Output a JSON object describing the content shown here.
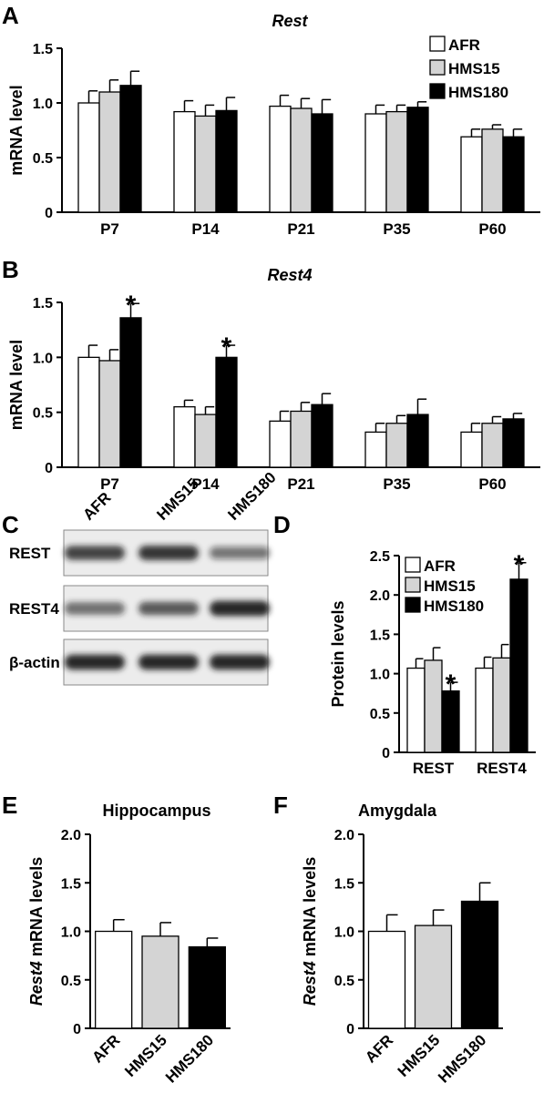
{
  "colors": {
    "AFR": "#ffffff",
    "HMS15": "#d4d4d4",
    "HMS180": "#000000"
  },
  "chart_data": [
    {
      "panel": "A",
      "type": "bar",
      "title": "Rest",
      "xlabel": "",
      "ylabel": "mRNA  level",
      "ylim": [
        0,
        1.5
      ],
      "yticks": [
        "0",
        "0.5",
        "1.0",
        "1.5"
      ],
      "categories": [
        "P7",
        "P14",
        "P21",
        "P35",
        "P60"
      ],
      "legend": [
        "AFR",
        "HMS15",
        "HMS180"
      ],
      "legend_position": "top-right",
      "series": [
        {
          "name": "AFR",
          "values": [
            1.0,
            0.92,
            0.97,
            0.9,
            0.69
          ],
          "errors": [
            0.11,
            0.1,
            0.1,
            0.08,
            0.07
          ]
        },
        {
          "name": "HMS15",
          "values": [
            1.1,
            0.88,
            0.95,
            0.92,
            0.76
          ],
          "errors": [
            0.11,
            0.1,
            0.09,
            0.06,
            0.04
          ]
        },
        {
          "name": "HMS180",
          "values": [
            1.16,
            0.93,
            0.9,
            0.96,
            0.69
          ],
          "errors": [
            0.13,
            0.12,
            0.13,
            0.05,
            0.07
          ]
        }
      ],
      "annotations": []
    },
    {
      "panel": "B",
      "type": "bar",
      "title": "Rest4",
      "xlabel": "",
      "ylabel": "mRNA  level",
      "ylim": [
        0,
        1.5
      ],
      "yticks": [
        "0",
        "0.5",
        "1.0",
        "1.5"
      ],
      "categories": [
        "P7",
        "P14",
        "P21",
        "P35",
        "P60"
      ],
      "series": [
        {
          "name": "AFR",
          "values": [
            1.0,
            0.55,
            0.42,
            0.32,
            0.32
          ],
          "errors": [
            0.11,
            0.06,
            0.09,
            0.08,
            0.08
          ]
        },
        {
          "name": "HMS15",
          "values": [
            0.97,
            0.48,
            0.51,
            0.4,
            0.4
          ],
          "errors": [
            0.1,
            0.07,
            0.08,
            0.07,
            0.06
          ]
        },
        {
          "name": "HMS180",
          "values": [
            1.36,
            1.0,
            0.57,
            0.48,
            0.44
          ],
          "errors": [
            0.13,
            0.11,
            0.1,
            0.14,
            0.05
          ]
        }
      ],
      "annotations": [
        {
          "category": "P7",
          "series": "HMS180",
          "text": "*"
        },
        {
          "category": "P14",
          "series": "HMS180",
          "text": "*"
        }
      ]
    },
    {
      "panel": "D",
      "type": "bar",
      "title": "",
      "xlabel": "",
      "ylabel": "Protein  levels",
      "ylim": [
        0,
        2.5
      ],
      "yticks": [
        "0",
        "0.5",
        "1.0",
        "1.5",
        "2.0",
        "2.5"
      ],
      "categories": [
        "REST",
        "REST4"
      ],
      "legend": [
        "AFR",
        "HMS15",
        "HMS180"
      ],
      "legend_position": "top-left",
      "series": [
        {
          "name": "AFR",
          "values": [
            1.07,
            1.07
          ],
          "errors": [
            0.12,
            0.14
          ]
        },
        {
          "name": "HMS15",
          "values": [
            1.17,
            1.2
          ],
          "errors": [
            0.16,
            0.17
          ]
        },
        {
          "name": "HMS180",
          "values": [
            0.78,
            2.2
          ],
          "errors": [
            0.11,
            0.21
          ]
        }
      ],
      "annotations": [
        {
          "category": "REST",
          "series": "HMS180",
          "text": "*"
        },
        {
          "category": "REST4",
          "series": "HMS180",
          "text": "*"
        }
      ]
    },
    {
      "panel": "E",
      "type": "bar",
      "title": "Hippocampus",
      "xlabel": "",
      "ylabel_italic": "Rest4",
      "ylabel": " mRNA  levels",
      "ylim": [
        0,
        2.0
      ],
      "yticks": [
        "0",
        "0.5",
        "1.0",
        "1.5",
        "2.0"
      ],
      "categories": [
        "AFR",
        "HMS15",
        "HMS180"
      ],
      "values": [
        1.0,
        0.95,
        0.84
      ],
      "errors": [
        0.12,
        0.14,
        0.09
      ]
    },
    {
      "panel": "F",
      "type": "bar",
      "title": "Amygdala",
      "xlabel": "",
      "ylabel_italic": "Rest4",
      "ylabel": " mRNA  levels",
      "ylim": [
        0,
        2.0
      ],
      "yticks": [
        "0",
        "0.5",
        "1.0",
        "1.5",
        "2.0"
      ],
      "categories": [
        "AFR",
        "HMS15",
        "HMS180"
      ],
      "values": [
        1.0,
        1.06,
        1.31
      ],
      "errors": [
        0.17,
        0.16,
        0.19
      ]
    }
  ],
  "blot": {
    "panel": "C",
    "lanes": [
      "AFR",
      "HMS15",
      "HMS180"
    ],
    "rows": [
      {
        "label": "REST",
        "intensity": [
          0.8,
          0.86,
          0.55
        ]
      },
      {
        "label": "REST4",
        "intensity": [
          0.6,
          0.7,
          0.95
        ]
      },
      {
        "label": "β-actin",
        "intensity": [
          0.95,
          0.95,
          0.95
        ]
      }
    ]
  }
}
